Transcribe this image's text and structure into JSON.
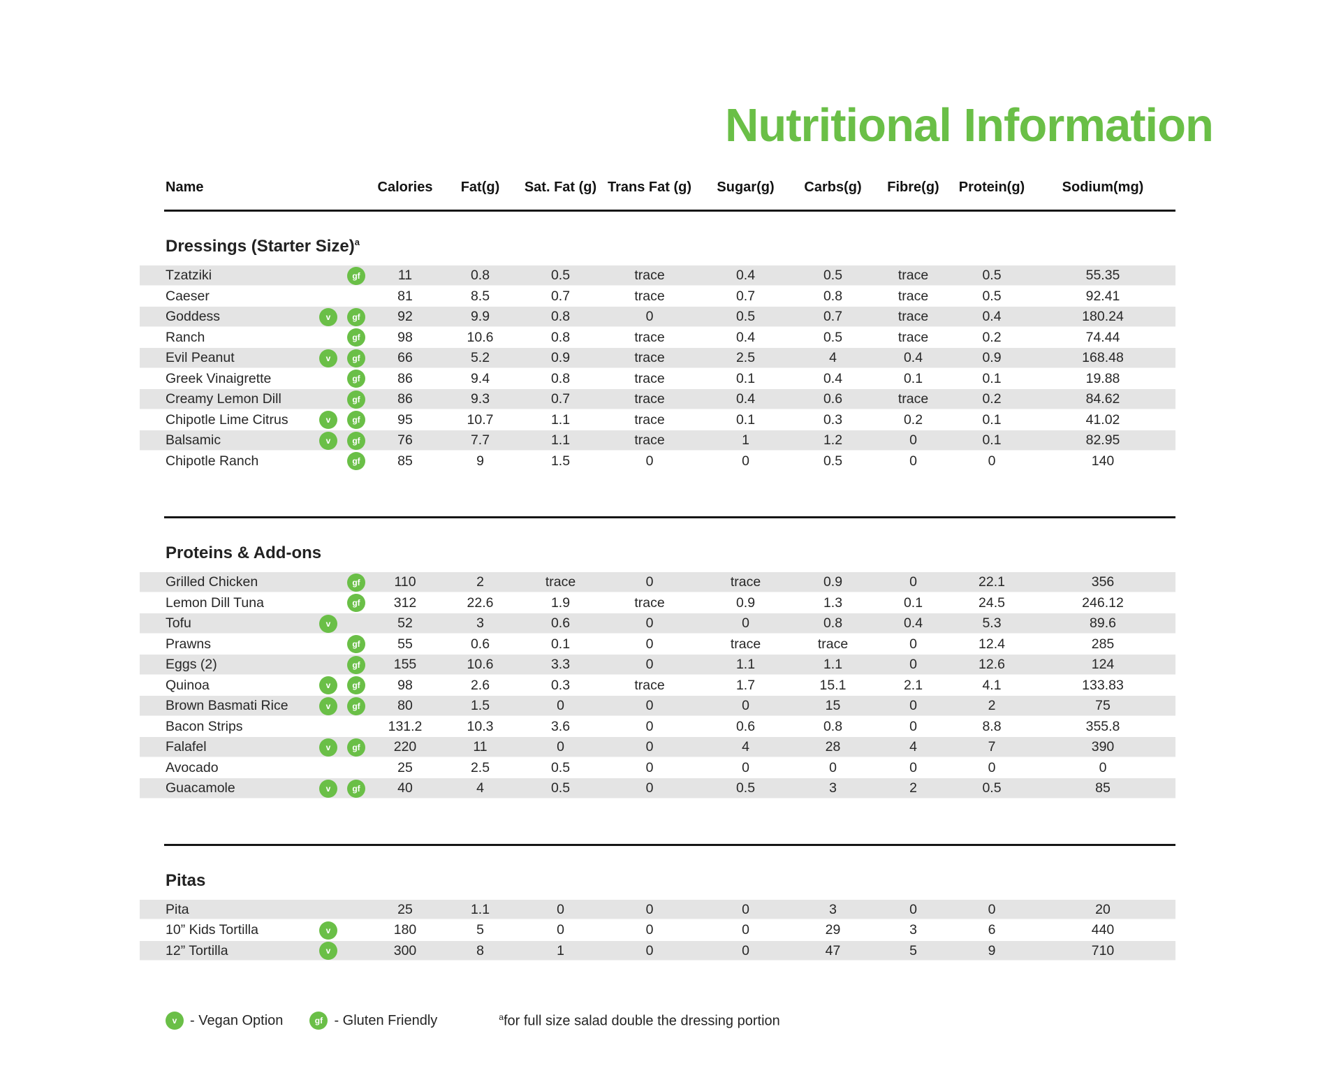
{
  "page": {
    "title": "Nutritional Information",
    "accent_color": "#6abf47",
    "stripe_color": "#e4e4e4"
  },
  "table": {
    "columns": [
      "Name",
      "Calories",
      "Fat(g)",
      "Sat. Fat (g)",
      "Trans Fat (g)",
      "Sugar(g)",
      "Carbs(g)",
      "Fibre(g)",
      "Protein(g)",
      "Sodium(mg)"
    ],
    "sections": [
      {
        "heading": "Dressings (Starter Size)",
        "heading_sup": "a",
        "rows": [
          {
            "name": "Tzatziki",
            "vegan": false,
            "gluten_friendly": true,
            "values": [
              "11",
              "0.8",
              "0.5",
              "trace",
              "0.4",
              "0.5",
              "trace",
              "0.5",
              "55.35"
            ]
          },
          {
            "name": "Caeser",
            "vegan": false,
            "gluten_friendly": false,
            "values": [
              "81",
              "8.5",
              "0.7",
              "trace",
              "0.7",
              "0.8",
              "trace",
              "0.5",
              "92.41"
            ]
          },
          {
            "name": "Goddess",
            "vegan": true,
            "gluten_friendly": true,
            "values": [
              "92",
              "9.9",
              "0.8",
              "0",
              "0.5",
              "0.7",
              "trace",
              "0.4",
              "180.24"
            ]
          },
          {
            "name": "Ranch",
            "vegan": false,
            "gluten_friendly": true,
            "values": [
              "98",
              "10.6",
              "0.8",
              "trace",
              "0.4",
              "0.5",
              "trace",
              "0.2",
              "74.44"
            ]
          },
          {
            "name": "Evil Peanut",
            "vegan": true,
            "gluten_friendly": true,
            "values": [
              "66",
              "5.2",
              "0.9",
              "trace",
              "2.5",
              "4",
              "0.4",
              "0.9",
              "168.48"
            ]
          },
          {
            "name": "Greek Vinaigrette",
            "vegan": false,
            "gluten_friendly": true,
            "values": [
              "86",
              "9.4",
              "0.8",
              "trace",
              "0.1",
              "0.4",
              "0.1",
              "0.1",
              "19.88"
            ]
          },
          {
            "name": "Creamy Lemon Dill",
            "vegan": false,
            "gluten_friendly": true,
            "values": [
              "86",
              "9.3",
              "0.7",
              "trace",
              "0.4",
              "0.6",
              "trace",
              "0.2",
              "84.62"
            ]
          },
          {
            "name": "Chipotle Lime Citrus",
            "vegan": true,
            "gluten_friendly": true,
            "values": [
              "95",
              "10.7",
              "1.1",
              "trace",
              "0.1",
              "0.3",
              "0.2",
              "0.1",
              "41.02"
            ]
          },
          {
            "name": "Balsamic",
            "vegan": true,
            "gluten_friendly": true,
            "values": [
              "76",
              "7.7",
              "1.1",
              "trace",
              "1",
              "1.2",
              "0",
              "0.1",
              "82.95"
            ]
          },
          {
            "name": "Chipotle Ranch",
            "vegan": false,
            "gluten_friendly": true,
            "values": [
              "85",
              "9",
              "1.5",
              "0",
              "0",
              "0.5",
              "0",
              "0",
              "140"
            ]
          }
        ]
      },
      {
        "heading": "Proteins & Add-ons",
        "heading_sup": "",
        "rows": [
          {
            "name": "Grilled Chicken",
            "vegan": false,
            "gluten_friendly": true,
            "values": [
              "110",
              "2",
              "trace",
              "0",
              "trace",
              "0.9",
              "0",
              "22.1",
              "356"
            ]
          },
          {
            "name": "Lemon Dill Tuna",
            "vegan": false,
            "gluten_friendly": true,
            "values": [
              "312",
              "22.6",
              "1.9",
              "trace",
              "0.9",
              "1.3",
              "0.1",
              "24.5",
              "246.12"
            ]
          },
          {
            "name": "Tofu",
            "vegan": true,
            "gluten_friendly": false,
            "values": [
              "52",
              "3",
              "0.6",
              "0",
              "0",
              "0.8",
              "0.4",
              "5.3",
              "89.6"
            ]
          },
          {
            "name": "Prawns",
            "vegan": false,
            "gluten_friendly": true,
            "values": [
              "55",
              "0.6",
              "0.1",
              "0",
              "trace",
              "trace",
              "0",
              "12.4",
              "285"
            ]
          },
          {
            "name": "Eggs (2)",
            "vegan": false,
            "gluten_friendly": true,
            "values": [
              "155",
              "10.6",
              "3.3",
              "0",
              "1.1",
              "1.1",
              "0",
              "12.6",
              "124"
            ]
          },
          {
            "name": "Quinoa",
            "vegan": true,
            "gluten_friendly": true,
            "values": [
              "98",
              "2.6",
              "0.3",
              "trace",
              "1.7",
              "15.1",
              "2.1",
              "4.1",
              "133.83"
            ]
          },
          {
            "name": "Brown Basmati Rice",
            "vegan": true,
            "gluten_friendly": true,
            "values": [
              "80",
              "1.5",
              "0",
              "0",
              "0",
              "15",
              "0",
              "2",
              "75"
            ]
          },
          {
            "name": "Bacon Strips",
            "vegan": false,
            "gluten_friendly": false,
            "values": [
              "131.2",
              "10.3",
              "3.6",
              "0",
              "0.6",
              "0.8",
              "0",
              "8.8",
              "355.8"
            ]
          },
          {
            "name": "Falafel",
            "vegan": true,
            "gluten_friendly": true,
            "values": [
              "220",
              "11",
              "0",
              "0",
              "4",
              "28",
              "4",
              "7",
              "390"
            ]
          },
          {
            "name": "Avocado",
            "vegan": false,
            "gluten_friendly": false,
            "values": [
              "25",
              "2.5",
              "0.5",
              "0",
              "0",
              "0",
              "0",
              "0",
              "0"
            ]
          },
          {
            "name": "Guacamole",
            "vegan": true,
            "gluten_friendly": true,
            "values": [
              "40",
              "4",
              "0.5",
              "0",
              "0.5",
              "3",
              "2",
              "0.5",
              "85"
            ]
          }
        ]
      },
      {
        "heading": "Pitas",
        "heading_sup": "",
        "rows": [
          {
            "name": "Pita",
            "vegan": false,
            "gluten_friendly": false,
            "values": [
              "25",
              "1.1",
              "0",
              "0",
              "0",
              "3",
              "0",
              "0",
              "20"
            ]
          },
          {
            "name": "10” Kids Tortilla",
            "vegan": true,
            "gluten_friendly": false,
            "values": [
              "180",
              "5",
              "0",
              "0",
              "0",
              "29",
              "3",
              "6",
              "440"
            ]
          },
          {
            "name": "12” Tortilla",
            "vegan": true,
            "gluten_friendly": false,
            "values": [
              "300",
              "8",
              "1",
              "0",
              "0",
              "47",
              "5",
              "9",
              "710"
            ]
          }
        ]
      }
    ]
  },
  "legend": {
    "vegan_symbol": "v",
    "vegan_label": "- Vegan Option",
    "gf_symbol": "gf",
    "gf_label": "- Gluten Friendly",
    "footnote_sup": "a",
    "footnote": "for full size salad double the dressing portion"
  }
}
